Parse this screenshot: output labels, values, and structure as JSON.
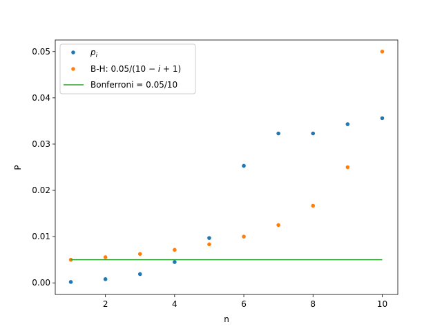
{
  "chart_data": {
    "type": "scatter",
    "title": "",
    "xlabel": "n",
    "ylabel": "P",
    "xlim": [
      0.55,
      10.45
    ],
    "ylim": [
      -0.0025,
      0.0525
    ],
    "xticks": [
      2,
      4,
      6,
      8,
      10
    ],
    "yticks": [
      0.0,
      0.01,
      0.02,
      0.03,
      0.04,
      0.05
    ],
    "ytick_labels": [
      "0.00",
      "0.01",
      "0.02",
      "0.03",
      "0.04",
      "0.05"
    ],
    "grid": false,
    "legend_position": "top-left",
    "series": [
      {
        "name": "p_i",
        "legend_main": "p",
        "legend_sub": "i",
        "type": "scatter",
        "color": "#1f77b4",
        "x": [
          1,
          2,
          3,
          4,
          5,
          6,
          7,
          8,
          9,
          10
        ],
        "y": [
          0.0002,
          0.0008,
          0.0019,
          0.0045,
          0.0097,
          0.0253,
          0.0323,
          0.0323,
          0.0343,
          0.0356
        ]
      },
      {
        "name": "B-H: 0.05/(10 − i + 1)",
        "legend_prefix": "B-H: 0.05/(10 − ",
        "legend_italic": "i",
        "legend_suffix": " + 1)",
        "type": "scatter",
        "color": "#ff7f0e",
        "x": [
          1,
          2,
          3,
          4,
          5,
          6,
          7,
          8,
          9,
          10
        ],
        "y": [
          0.005,
          0.005556,
          0.00625,
          0.007143,
          0.008333,
          0.01,
          0.0125,
          0.016667,
          0.025,
          0.05
        ]
      },
      {
        "name": "Bonferroni = 0.05/10",
        "type": "line",
        "color": "#2ca02c",
        "x": [
          1,
          10
        ],
        "y": [
          0.005,
          0.005
        ]
      }
    ]
  }
}
